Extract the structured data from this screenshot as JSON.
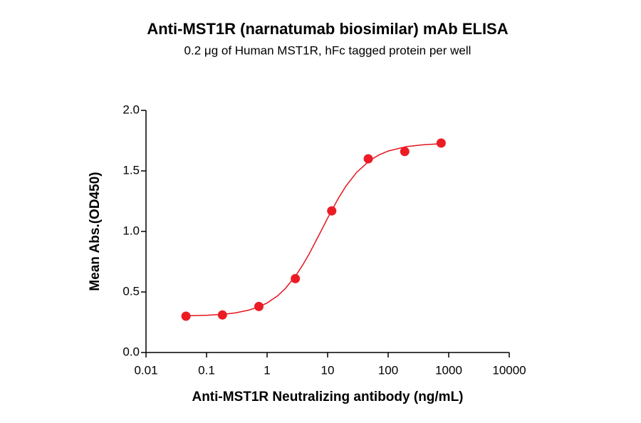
{
  "chart_data": {
    "type": "scatter",
    "title": "Anti-MST1R (narnatumab biosimilar) mAb ELISA",
    "subtitle": "0.2 μg of Human MST1R, hFc tagged protein per well",
    "x_label": "Anti-MST1R Neutralizing antibody (ng/mL)",
    "y_label": "Mean Abs.(OD450)",
    "xscale": "log",
    "xlim": [
      0.01,
      10000
    ],
    "xticks": [
      0.01,
      0.1,
      1,
      10,
      100,
      1000,
      10000
    ],
    "ylim": [
      0,
      2.0
    ],
    "yticks": [
      {
        "value": 0,
        "label": "0.0"
      },
      {
        "value": 0.5,
        "label": "0.5"
      },
      {
        "value": 1.0,
        "label": "1.0"
      },
      {
        "value": 1.5,
        "label": "1.5"
      },
      {
        "value": 2.0,
        "label": "2.0"
      }
    ],
    "grid": false,
    "series": [
      {
        "color": "#ec1c24",
        "x": [
          0.0457,
          0.183,
          0.732,
          2.93,
          11.7,
          46.9,
          188,
          750
        ],
        "values": [
          0.3,
          0.31,
          0.38,
          0.61,
          1.17,
          1.6,
          1.66,
          1.73
        ]
      }
    ],
    "fit_curve": {
      "color": "#e3141c",
      "x": [
        0.0457,
        0.1,
        0.2,
        0.3,
        0.5,
        0.7,
        1,
        1.5,
        2,
        3,
        4,
        5,
        7,
        10,
        15,
        20,
        30,
        50,
        70,
        100,
        200,
        400,
        750
      ],
      "values": [
        0.303,
        0.307,
        0.317,
        0.327,
        0.35,
        0.373,
        0.409,
        0.469,
        0.528,
        0.637,
        0.734,
        0.818,
        0.958,
        1.11,
        1.273,
        1.373,
        1.487,
        1.587,
        1.631,
        1.664,
        1.701,
        1.717,
        1.724
      ]
    }
  }
}
